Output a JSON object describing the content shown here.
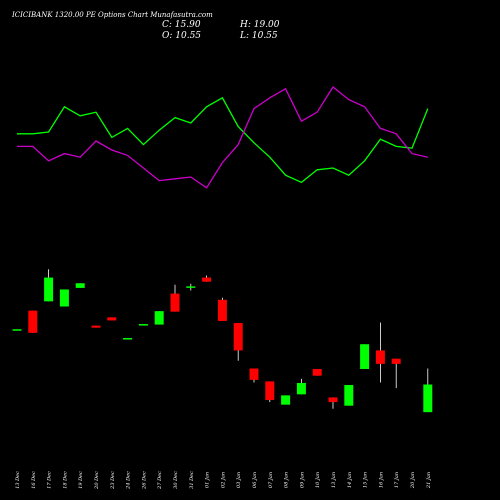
{
  "chart_data": {
    "type": "candlestick",
    "title": "ICICIBANK 1320.00 PE Options Chart Munafasutra.com",
    "ohlc_display": {
      "close": "C: 15.90",
      "high": "H: 19.00",
      "open": "O: 10.55",
      "low": "L: 10.55"
    },
    "x_labels": [
      "13 Dec",
      "16 Dec",
      "17 Dec",
      "18 Dec",
      "19 Dec",
      "20 Dec",
      "23 Dec",
      "24 Dec",
      "26 Dec",
      "27 Dec",
      "30 Dec",
      "31 Dec",
      "01 Jan",
      "02 Jan",
      "03 Jan",
      "06 Jan",
      "07 Jan",
      "08 Jan",
      "09 Jan",
      "10 Jan",
      "13 Jan",
      "14 Jan",
      "15 Jan",
      "16 Jan",
      "17 Jan",
      "20 Jan",
      "21 Jan"
    ],
    "candles": [
      {
        "date": "13 Dec",
        "open": 26.6,
        "high": 26.6,
        "low": 26.6,
        "close": 26.6
      },
      {
        "date": "16 Dec",
        "open": 30.2,
        "high": 30.2,
        "low": 25.9,
        "close": 25.9
      },
      {
        "date": "17 Dec",
        "open": 32.0,
        "high": 38.2,
        "low": 32.0,
        "close": 36.6
      },
      {
        "date": "18 Dec",
        "open": 31.0,
        "high": 34.3,
        "low": 31.0,
        "close": 34.3
      },
      {
        "date": "19 Dec",
        "open": 34.6,
        "high": 35.5,
        "low": 34.6,
        "close": 35.5
      },
      {
        "date": "20 Dec",
        "open": 27.3,
        "high": 27.3,
        "low": 26.9,
        "close": 26.9
      },
      {
        "date": "23 Dec",
        "open": 28.9,
        "high": 28.9,
        "low": 28.3,
        "close": 28.3
      },
      {
        "date": "24 Dec",
        "open": 24.9,
        "high": 24.9,
        "low": 24.9,
        "close": 24.9
      },
      {
        "date": "26 Dec",
        "open": 27.6,
        "high": 27.6,
        "low": 27.6,
        "close": 27.6
      },
      {
        "date": "27 Dec",
        "open": 27.5,
        "high": 30.1,
        "low": 27.5,
        "close": 30.1
      },
      {
        "date": "30 Dec",
        "open": 33.5,
        "high": 35.2,
        "low": 30.0,
        "close": 30.0
      },
      {
        "date": "31 Dec",
        "open": 34.9,
        "high": 35.4,
        "low": 34.1,
        "close": 34.9
      },
      {
        "date": "01 Jan",
        "open": 36.6,
        "high": 37.0,
        "low": 35.8,
        "close": 35.8
      },
      {
        "date": "02 Jan",
        "open": 32.3,
        "high": 32.7,
        "low": 28.2,
        "close": 28.2
      },
      {
        "date": "03 Jan",
        "open": 27.8,
        "high": 27.8,
        "low": 20.5,
        "close": 22.5
      },
      {
        "date": "06 Jan",
        "open": 19.0,
        "high": 19.0,
        "low": 16.3,
        "close": 16.8
      },
      {
        "date": "07 Jan",
        "open": 16.5,
        "high": 16.5,
        "low": 12.5,
        "close": 12.9
      },
      {
        "date": "08 Jan",
        "open": 12.0,
        "high": 13.8,
        "low": 12.0,
        "close": 13.8
      },
      {
        "date": "09 Jan",
        "open": 14.0,
        "high": 17.0,
        "low": 14.0,
        "close": 16.2
      },
      {
        "date": "10 Jan",
        "open": 18.9,
        "high": 18.9,
        "low": 17.6,
        "close": 17.6
      },
      {
        "date": "13 Jan",
        "open": 13.4,
        "high": 13.4,
        "low": 11.2,
        "close": 12.5
      },
      {
        "date": "14 Jan",
        "open": 11.8,
        "high": 15.8,
        "low": 11.8,
        "close": 15.8
      },
      {
        "date": "15 Jan",
        "open": 18.9,
        "high": 23.7,
        "low": 18.9,
        "close": 23.7
      },
      {
        "date": "16 Jan",
        "open": 22.5,
        "high": 27.9,
        "low": 16.3,
        "close": 19.9
      },
      {
        "date": "17 Jan",
        "open": 20.9,
        "high": 20.9,
        "low": 15.2,
        "close": 19.9
      },
      {
        "date": "20 Jan",
        "open": null,
        "high": null,
        "low": null,
        "close": null
      },
      {
        "date": "21 Jan",
        "open": 10.55,
        "high": 19.0,
        "low": 10.55,
        "close": 15.9
      }
    ],
    "series": [
      {
        "color": "#00ff00",
        "values": [
          0.59,
          0.59,
          0.6,
          0.74,
          0.69,
          0.71,
          0.57,
          0.62,
          0.53,
          0.61,
          0.68,
          0.65,
          0.74,
          0.79,
          0.63,
          0.54,
          0.46,
          0.36,
          0.32,
          0.39,
          0.4,
          0.36,
          0.44,
          0.56,
          0.52,
          0.51,
          0.73
        ]
      },
      {
        "color": "#cc00cc",
        "values": [
          0.52,
          0.52,
          0.44,
          0.48,
          0.46,
          0.55,
          0.5,
          0.47,
          0.4,
          0.33,
          0.34,
          0.35,
          0.29,
          0.43,
          0.53,
          0.73,
          0.79,
          0.84,
          0.66,
          0.71,
          0.85,
          0.78,
          0.74,
          0.62,
          0.59,
          0.48,
          0.46
        ]
      }
    ],
    "colors": {
      "background": "#000000",
      "up": "#00ff00",
      "down": "#ff0000",
      "text": "#ffffff",
      "wick": "#ffffff"
    }
  }
}
